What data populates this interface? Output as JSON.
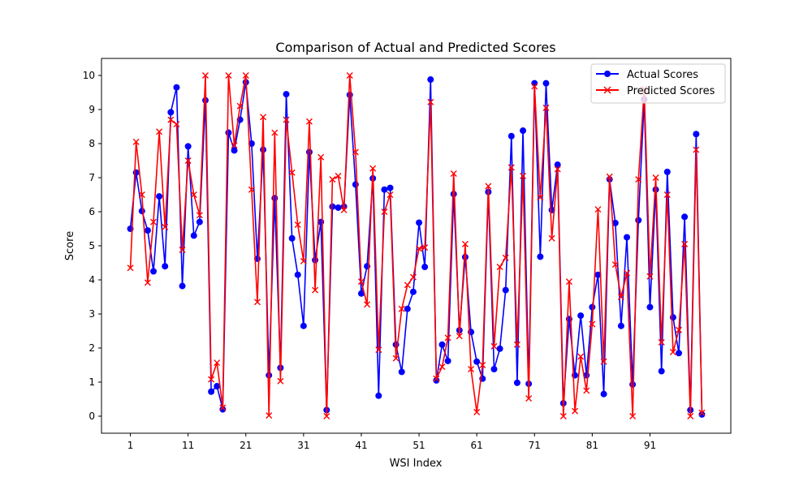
{
  "chart_data": {
    "type": "line",
    "title": "Comparison of Actual and Predicted Scores",
    "xlabel": "WSI Index",
    "ylabel": "Score",
    "xlim": [
      -4.0,
      105.0
    ],
    "ylim": [
      -0.5,
      10.5
    ],
    "x_ticks": [
      1,
      11,
      21,
      31,
      41,
      51,
      61,
      71,
      81,
      91
    ],
    "x_tick_labels": [
      "1",
      "11",
      "21",
      "31",
      "41",
      "51",
      "61",
      "71",
      "81",
      "91"
    ],
    "y_ticks": [
      0,
      1,
      2,
      3,
      4,
      5,
      6,
      7,
      8,
      9,
      10
    ],
    "y_tick_labels": [
      "0",
      "1",
      "2",
      "3",
      "4",
      "5",
      "6",
      "7",
      "8",
      "9",
      "10"
    ],
    "grid": false,
    "legend_position": "top-right",
    "x": [
      1,
      2,
      3,
      4,
      5,
      6,
      7,
      8,
      9,
      10,
      11,
      12,
      13,
      14,
      15,
      16,
      17,
      18,
      19,
      20,
      21,
      22,
      23,
      24,
      25,
      26,
      27,
      28,
      29,
      30,
      31,
      32,
      33,
      34,
      35,
      36,
      37,
      38,
      39,
      40,
      41,
      42,
      43,
      44,
      45,
      46,
      47,
      48,
      49,
      50,
      51,
      52,
      53,
      54,
      55,
      56,
      57,
      58,
      59,
      60,
      61,
      62,
      63,
      64,
      65,
      66,
      67,
      68,
      69,
      70,
      71,
      72,
      73,
      74,
      75,
      76,
      77,
      78,
      79,
      80,
      81,
      82,
      83,
      84,
      85,
      86,
      87,
      88,
      89,
      90,
      91,
      92,
      93,
      94,
      95,
      96,
      97,
      98,
      99,
      100
    ],
    "series": [
      {
        "name": "Actual Scores",
        "color": "#0000ff",
        "marker": "circle",
        "values": [
          5.5,
          7.15,
          6.02,
          5.45,
          4.25,
          6.45,
          4.4,
          8.92,
          9.65,
          3.82,
          7.92,
          5.3,
          5.7,
          9.27,
          0.72,
          0.88,
          0.2,
          8.32,
          7.8,
          8.7,
          9.8,
          8.0,
          4.62,
          7.82,
          1.2,
          6.4,
          1.42,
          9.45,
          5.22,
          4.15,
          2.65,
          7.75,
          4.58,
          5.7,
          0.18,
          6.15,
          6.12,
          6.15,
          9.43,
          6.8,
          3.6,
          4.4,
          6.98,
          0.6,
          6.65,
          6.7,
          2.1,
          1.3,
          3.15,
          3.65,
          5.68,
          4.38,
          9.88,
          1.05,
          2.1,
          1.62,
          6.52,
          2.52,
          4.67,
          2.47,
          1.6,
          1.1,
          6.58,
          1.38,
          1.98,
          3.7,
          8.22,
          0.98,
          8.38,
          0.95,
          9.77,
          4.68,
          9.77,
          6.05,
          7.38,
          0.38,
          2.85,
          1.2,
          2.95,
          1.2,
          3.2,
          4.15,
          0.65,
          6.95,
          5.67,
          2.65,
          5.25,
          0.93,
          5.75,
          9.3,
          3.2,
          6.65,
          1.32,
          7.17,
          2.9,
          1.85,
          5.85,
          0.18,
          8.28,
          0.05
        ]
      },
      {
        "name": "Predicted Scores",
        "color": "#ff0000",
        "marker": "x",
        "values": [
          4.35,
          8.05,
          6.5,
          3.92,
          5.7,
          8.35,
          5.55,
          8.7,
          8.57,
          4.88,
          7.5,
          6.5,
          5.9,
          10.0,
          1.08,
          1.57,
          0.25,
          10.0,
          7.95,
          9.1,
          10.0,
          6.65,
          3.35,
          8.78,
          0.02,
          8.32,
          1.03,
          8.7,
          7.15,
          5.62,
          4.55,
          8.65,
          3.7,
          7.6,
          0.0,
          6.95,
          7.05,
          6.05,
          10.0,
          7.75,
          3.95,
          3.28,
          7.27,
          1.95,
          6.0,
          6.5,
          1.7,
          3.15,
          3.85,
          4.08,
          4.92,
          4.95,
          9.22,
          1.1,
          1.45,
          2.3,
          7.12,
          2.35,
          5.05,
          1.38,
          0.12,
          1.5,
          6.75,
          2.05,
          4.38,
          4.65,
          7.3,
          2.1,
          7.05,
          0.52,
          9.68,
          6.42,
          9.05,
          5.22,
          7.25,
          0.0,
          3.95,
          0.15,
          1.75,
          0.75,
          2.7,
          6.07,
          1.6,
          7.03,
          4.45,
          3.5,
          4.2,
          0.0,
          6.95,
          9.6,
          4.1,
          7.0,
          2.17,
          6.5,
          1.88,
          2.53,
          5.05,
          0.0,
          7.82,
          0.1
        ]
      }
    ]
  }
}
